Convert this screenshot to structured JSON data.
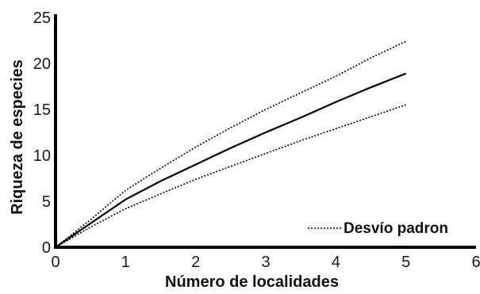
{
  "chart_data": {
    "type": "line",
    "title": "",
    "xlabel": "Número de localidades",
    "ylabel": "Riqueza de especies",
    "xlim": [
      0,
      6
    ],
    "ylim": [
      0,
      25
    ],
    "x_ticks": [
      "0",
      "1",
      "2",
      "3",
      "4",
      "5",
      "6"
    ],
    "y_ticks": [
      "0",
      "5",
      "10",
      "15",
      "20",
      "25"
    ],
    "grid": false,
    "legend": {
      "position": "bottom-right",
      "entries": [
        "Desvío padron"
      ]
    },
    "series": [
      {
        "style": "solid",
        "color": "#000000",
        "x": [
          0,
          0.5,
          1,
          1.5,
          2,
          2.5,
          3,
          3.5,
          4,
          4.5,
          5
        ],
        "y": [
          0,
          2.6,
          5.2,
          7.2,
          9.0,
          10.8,
          12.5,
          14.1,
          15.8,
          17.4,
          18.9
        ]
      },
      {
        "name": "Desvío padron",
        "style": "dotted",
        "color": "#000000",
        "x": [
          0,
          0.5,
          1,
          1.5,
          2,
          2.5,
          3,
          3.5,
          4,
          4.5,
          5
        ],
        "y": [
          0,
          3.0,
          6.2,
          8.6,
          10.9,
          13.0,
          15.0,
          16.8,
          18.6,
          20.6,
          22.4
        ]
      },
      {
        "name": "Desvío padron",
        "style": "dotted",
        "color": "#000000",
        "x": [
          0,
          0.5,
          1,
          1.5,
          2,
          2.5,
          3,
          3.5,
          4,
          4.5,
          5
        ],
        "y": [
          0,
          2.2,
          4.2,
          5.8,
          7.4,
          8.8,
          10.2,
          11.6,
          12.9,
          14.2,
          15.5
        ]
      }
    ]
  }
}
